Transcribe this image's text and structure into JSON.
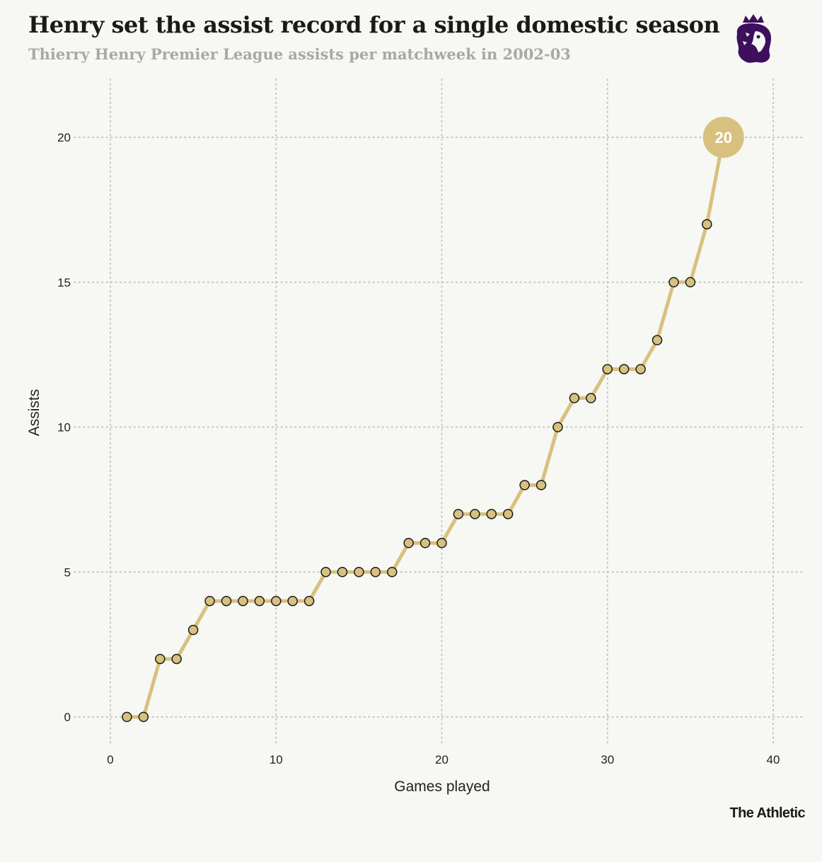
{
  "header": {
    "title": "Henry set the assist record for a single domestic season",
    "subtitle": "Thierry Henry Premier League assists per matchweek in 2002-03"
  },
  "logo": {
    "icon": "premier-league-lion-icon",
    "color": "#3d0f5c"
  },
  "footer": {
    "brand": "The Athletic"
  },
  "colors": {
    "line": "#d8c17e",
    "marker_fill": "#d8c17e",
    "marker_stroke": "#1a1a1a",
    "grid": "#c8c8c2",
    "background": "#f7f7f3"
  },
  "chart_data": {
    "type": "line",
    "title": "Henry set the assist record for a single domestic season",
    "subtitle": "Thierry Henry Premier League assists per matchweek in 2002-03",
    "xlabel": "Games played",
    "ylabel": "Assists",
    "xlim": [
      0,
      40
    ],
    "ylim": [
      0,
      20
    ],
    "xticks": [
      0,
      10,
      20,
      30,
      40
    ],
    "yticks": [
      0,
      5,
      10,
      15,
      20
    ],
    "grid": true,
    "series": [
      {
        "x": [
          1,
          2,
          3,
          4,
          5,
          6,
          7,
          8,
          9,
          10,
          11,
          12,
          13,
          14,
          15,
          16,
          17,
          18,
          19,
          20,
          21,
          22,
          23,
          24,
          25,
          26,
          27,
          28,
          29,
          30,
          31,
          32,
          33,
          34,
          35,
          36,
          37
        ],
        "y": [
          0,
          0,
          2,
          2,
          3,
          4,
          4,
          4,
          4,
          4,
          4,
          4,
          5,
          5,
          5,
          5,
          5,
          6,
          6,
          6,
          7,
          7,
          7,
          7,
          8,
          8,
          10,
          11,
          11,
          12,
          12,
          12,
          13,
          15,
          15,
          17,
          20
        ]
      }
    ],
    "end_label": "20"
  }
}
